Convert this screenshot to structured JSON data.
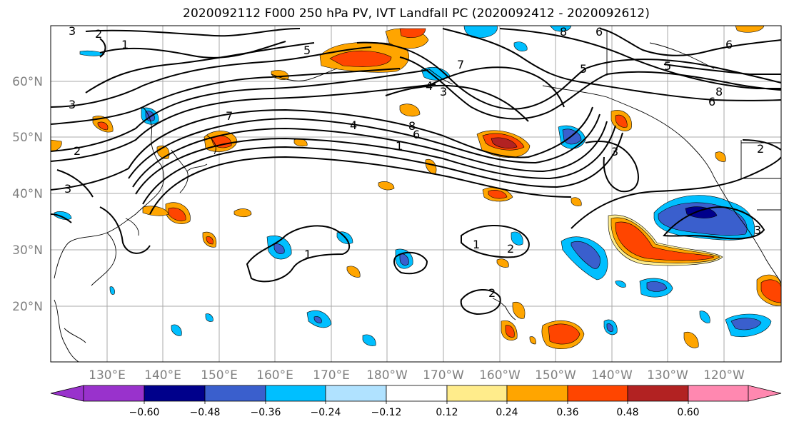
{
  "title": "2020092112 F000 250 hPa PV, IVT Landfall PC (2020092412 - 2020092612)",
  "lat_labels": [
    "60°N",
    "50°N",
    "40°N",
    "30°N",
    "20°N"
  ],
  "lon_labels": [
    "130°E",
    "140°E",
    "150°E",
    "160°E",
    "170°E",
    "180°W",
    "170°W",
    "160°W",
    "150°W",
    "140°W",
    "130°W",
    "120°W"
  ],
  "colorbar": {
    "ticks": [
      "−0.60",
      "−0.48",
      "−0.36",
      "−0.24",
      "−0.12",
      "0.12",
      "0.24",
      "0.36",
      "0.48",
      "0.60"
    ],
    "colors": [
      "#9932cc",
      "#00008b",
      "#3a5fcd",
      "#00bfff",
      "#b0e2ff",
      "#ffffff",
      "#ffec8b",
      "#ffa500",
      "#ff4500",
      "#b22222",
      "#ff88b0"
    ]
  },
  "contour_labels": [
    "3",
    "2",
    "1",
    "3",
    "2",
    "3",
    "5",
    "7",
    "4",
    "8",
    "6",
    "1",
    "5",
    "3",
    "4",
    "7",
    "8",
    "6",
    "5",
    "6",
    "8",
    "6",
    "3",
    "2",
    "1",
    "1",
    "2",
    "3",
    "2"
  ]
}
